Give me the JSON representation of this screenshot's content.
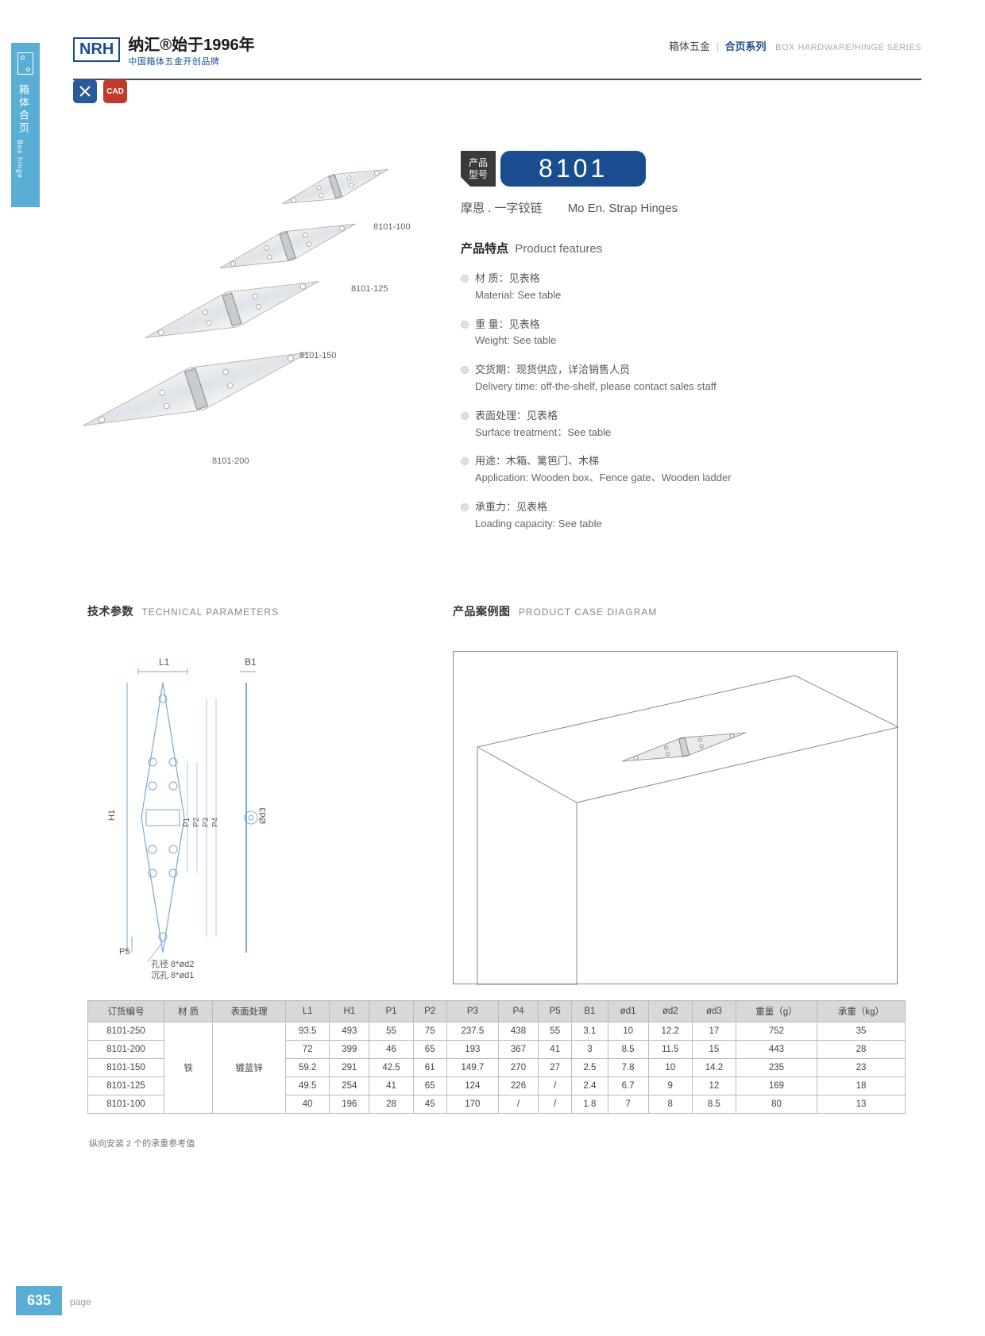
{
  "sideTab": {
    "cn": "箱体合页",
    "en": "Box hinge"
  },
  "header": {
    "logoText": "NRH",
    "brandCn": "纳汇®始于1996年",
    "brandSub": "中国箱体五金开创品牌",
    "rightCn1": "箱体五金",
    "rightCn2": "合页系列",
    "rightEn": "BOX HARDWARE/HINGE SERIES"
  },
  "badges": {
    "blue": "✕",
    "red": "CAD"
  },
  "imageLabels": {
    "a": "8101-100",
    "b": "8101-125",
    "c": "8101-150",
    "d": "8101-200"
  },
  "model": {
    "tagLine1": "产品",
    "tagLine2": "型号",
    "number": "8101",
    "nameCn": "摩恩 . 一字铰链",
    "nameEn": "Mo En. Strap Hinges"
  },
  "features": {
    "titleCn": "产品特点",
    "titleEn": "Product features",
    "items": [
      {
        "cn": "材 质：见表格",
        "en": "Material: See table"
      },
      {
        "cn": "重 量：见表格",
        "en": "Weight: See table"
      },
      {
        "cn": "交货期：现货供应，详洽销售人员",
        "en": "Delivery time: off-the-shelf, please contact sales staff"
      },
      {
        "cn": "表面处理：见表格",
        "en": "Surface treatment：See table"
      },
      {
        "cn": "用途：木箱、篱笆门、木梯",
        "en": "Application: Wooden box、Fence gate、Wooden ladder"
      },
      {
        "cn": "承重力：见表格",
        "en": "Loading capacity: See table"
      }
    ]
  },
  "techTitle": {
    "cn": "技术参数",
    "en": "TECHNICAL PARAMETERS"
  },
  "caseTitle": {
    "cn": "产品案例图",
    "en": "PRODUCT CASE DIAGRAM"
  },
  "techLabels": {
    "L1": "L1",
    "B1": "B1",
    "H1": "H1",
    "P1": "P1",
    "P2": "P2",
    "P3": "P3",
    "P4": "P4",
    "P5": "P5",
    "od3": "Ød3",
    "note1": "孔径 8*ød2",
    "note2": "沉孔 8*ød1"
  },
  "table": {
    "headers": [
      "订货编号",
      "材 质",
      "表面处理",
      "L1",
      "H1",
      "P1",
      "P2",
      "P3",
      "P4",
      "P5",
      "B1",
      "ød1",
      "ød2",
      "ød3",
      "重量（g）",
      "承重（kg）"
    ],
    "material": "铁",
    "surface": "镀蓝锌",
    "rows": [
      [
        "8101-250",
        "93.5",
        "493",
        "55",
        "75",
        "237.5",
        "438",
        "55",
        "3.1",
        "10",
        "12.2",
        "17",
        "752",
        "35"
      ],
      [
        "8101-200",
        "72",
        "399",
        "46",
        "65",
        "193",
        "367",
        "41",
        "3",
        "8.5",
        "11.5",
        "15",
        "443",
        "28"
      ],
      [
        "8101-150",
        "59.2",
        "291",
        "42.5",
        "61",
        "149.7",
        "270",
        "27",
        "2.5",
        "7.8",
        "10",
        "14.2",
        "235",
        "23"
      ],
      [
        "8101-125",
        "49.5",
        "254",
        "41",
        "65",
        "124",
        "226",
        "/",
        "2.4",
        "6.7",
        "9",
        "12",
        "169",
        "18"
      ],
      [
        "8101-100",
        "40",
        "196",
        "28",
        "45",
        "170",
        "/",
        "/",
        "1.8",
        "7",
        "8",
        "8.5",
        "80",
        "13"
      ]
    ],
    "note": "纵向安装 2 个的承重参考值"
  },
  "footer": {
    "pageNum": "635",
    "label": "page"
  },
  "colors": {
    "primaryBlue": "#1a4d8f",
    "lightBlue": "#5aaed6",
    "darkGray": "#3a3a3a",
    "red": "#c23a2e",
    "tableHeader": "#d8d8d8",
    "border": "#bbbbbb"
  }
}
